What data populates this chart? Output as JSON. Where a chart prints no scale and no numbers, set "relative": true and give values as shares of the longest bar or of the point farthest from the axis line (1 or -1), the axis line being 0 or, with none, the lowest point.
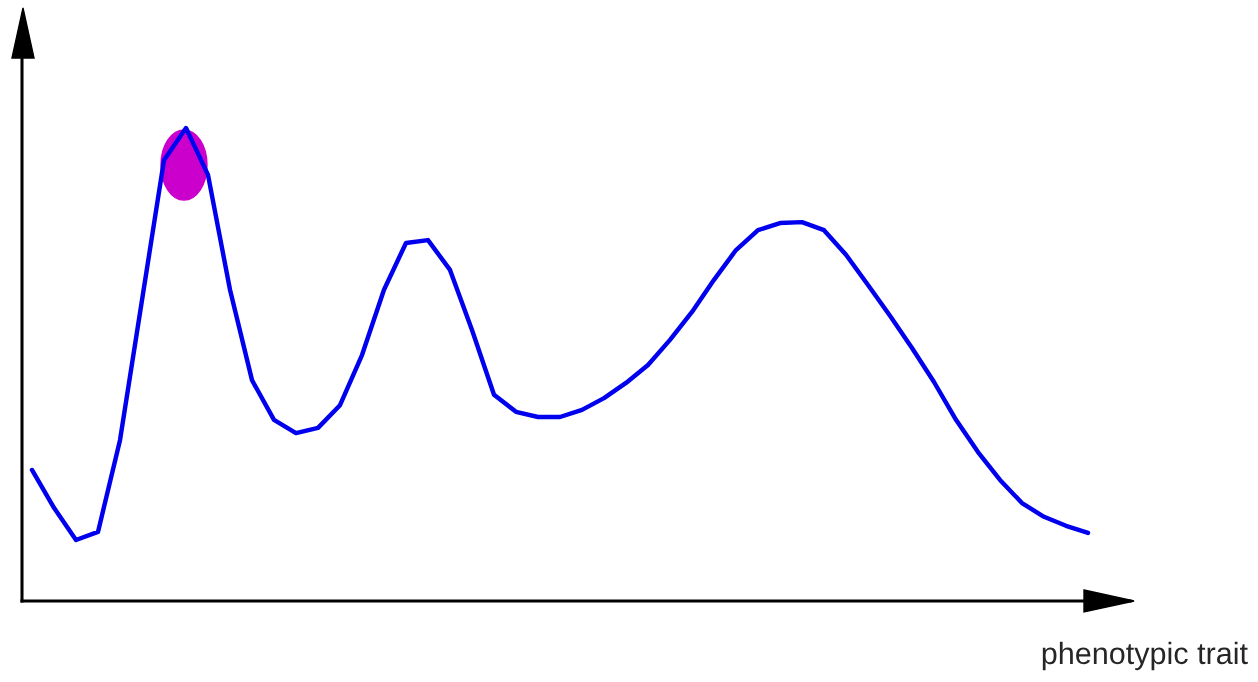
{
  "chart_data": {
    "type": "line",
    "relative": true,
    "xlabel": "phenotypic trait",
    "categories": [
      null,
      null,
      null,
      null,
      null,
      null,
      null,
      null,
      null,
      null,
      null,
      null,
      null,
      null,
      null,
      null,
      null,
      null,
      null,
      null,
      null,
      null,
      null,
      null,
      null,
      null,
      null,
      null,
      null,
      null,
      null,
      null,
      null,
      null,
      null,
      null,
      null,
      null,
      null,
      null,
      null,
      null,
      null,
      null,
      null,
      null,
      null,
      null,
      null
    ],
    "series": [
      {
        "color": "#0000ee",
        "values": [
          0.277,
          0.197,
          0.129,
          0.146,
          0.34,
          0.636,
          0.932,
          1.0,
          0.901,
          0.658,
          0.467,
          0.383,
          0.355,
          0.366,
          0.414,
          0.52,
          0.658,
          0.757,
          0.763,
          0.7,
          0.573,
          0.436,
          0.4,
          0.389,
          0.389,
          0.404,
          0.429,
          0.461,
          0.499,
          0.552,
          0.611,
          0.679,
          0.742,
          0.784,
          0.799,
          0.801,
          0.784,
          0.732,
          0.668,
          0.603,
          0.535,
          0.463,
          0.383,
          0.315,
          0.256,
          0.207,
          0.178,
          0.159,
          0.144
        ]
      }
    ],
    "grid": false,
    "legend": false
  }
}
